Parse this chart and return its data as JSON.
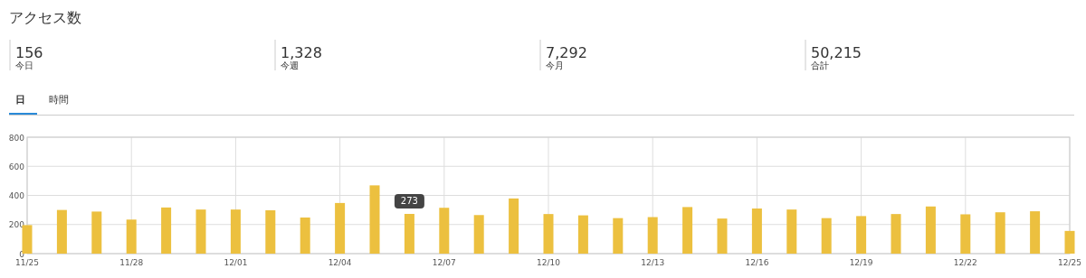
{
  "chart_data": [
    {
      "type": "other",
      "title": "アクセス数",
      "annotations": [
        "156",
        "今日",
        "1,328",
        "今週",
        "7,292",
        "今月",
        "50,215",
        "合計",
        "日",
        "時間"
      ]
    },
    {
      "type": "bar",
      "color": "#ecc03f",
      "ylim": [
        0,
        800
      ],
      "yticks": [
        0,
        200,
        400,
        600,
        800
      ],
      "grid": true,
      "categories": [
        "11/25",
        null,
        null,
        "11/28",
        null,
        null,
        "12/01",
        null,
        null,
        "12/04",
        null,
        null,
        "12/07",
        null,
        null,
        "12/10",
        null,
        null,
        "12/13",
        null,
        null,
        "12/16",
        null,
        null,
        "12/19",
        null,
        null,
        "12/22",
        null,
        null,
        "12/25"
      ],
      "values": [
        196,
        300,
        289,
        234,
        317,
        303,
        303,
        298,
        248,
        348,
        469,
        273,
        315,
        265,
        379,
        272,
        263,
        244,
        251,
        320,
        241,
        310,
        303,
        244,
        258,
        272,
        324,
        270,
        284,
        291,
        156
      ],
      "value_labels": [
        null,
        null,
        null,
        null,
        null,
        null,
        null,
        null,
        null,
        null,
        null,
        "273",
        null,
        null,
        null,
        null,
        null,
        null,
        null,
        null,
        null,
        null,
        null,
        null,
        null,
        null,
        null,
        null,
        null,
        null,
        null
      ]
    }
  ]
}
